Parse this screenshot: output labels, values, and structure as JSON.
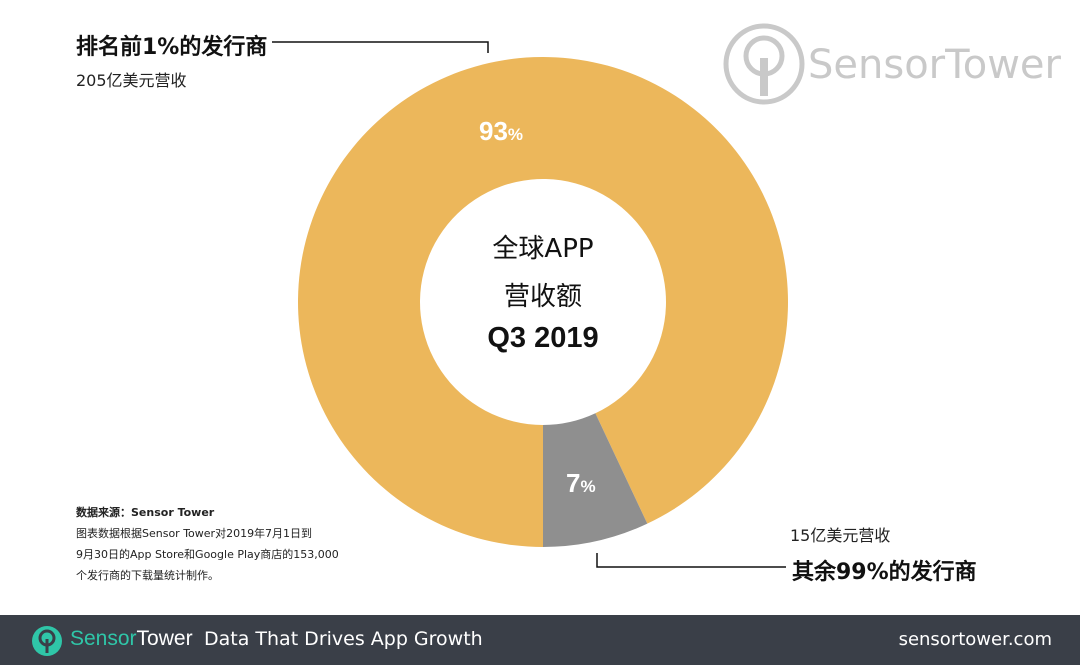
{
  "chart_data": {
    "type": "pie",
    "slices": [
      {
        "label": "排名前1%的发行商",
        "value": 93,
        "value_label": "93",
        "percent_sign": "%",
        "revenue": "205亿美元营收",
        "color": "#ecb75b"
      },
      {
        "label": "其余99%的发行商",
        "value": 7,
        "value_label": "7",
        "percent_sign": "%",
        "revenue": "15亿美元营收",
        "color": "#8f8f8f"
      }
    ],
    "center": {
      "line1": "全球APP",
      "line2": "营收额",
      "line3": "Q3 2019"
    },
    "donut": true
  },
  "watermark": {
    "text": "SensorTower"
  },
  "source": {
    "title": "数据来源：Sensor Tower",
    "line1": "图表数据根据Sensor Tower对2019年7月1日到",
    "line2": "9月30日的App Store和Google Play商店的153,000",
    "line3": "个发行商的下载量统计制作。"
  },
  "footer": {
    "brand_part1": "Sensor",
    "brand_part2": "Tower",
    "tagline": "Data That Drives App Growth",
    "url": "sensortower.com",
    "bg_color": "#3a3f48",
    "accent_color": "#2fc6a8"
  }
}
